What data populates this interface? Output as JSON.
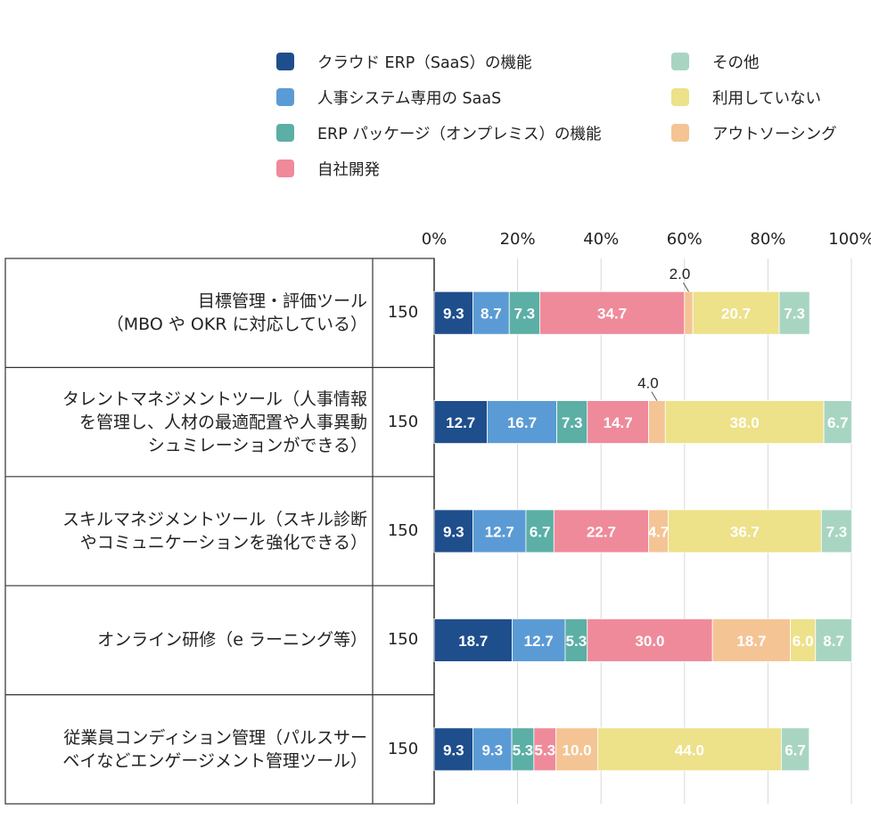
{
  "chart_data": {
    "type": "bar",
    "orientation": "horizontal",
    "stacked": true,
    "x_ticks": [
      "0%",
      "20%",
      "40%",
      "60%",
      "80%",
      "100%"
    ],
    "xlim": [
      0,
      100
    ],
    "categories": [
      "目標管理・評価ツール\n（MBO や OKR に対応している）",
      "タレントマネジメントツール（人事情報\nを管理し、人材の最適配置や人事異動\nシュミレーションができる）",
      "スキルマネジメントツール（スキル診断\nやコミュニケーションを強化できる）",
      "オンライン研修（e ラーニング等）",
      "従業員コンディション管理（パルスサー\nベイなどエンゲージメント管理ツール）"
    ],
    "n_values": [
      "150",
      "150",
      "150",
      "150",
      "150"
    ],
    "series": [
      {
        "name": "クラウド ERP（SaaS）の機能",
        "color": "#1f4e8c",
        "values": [
          9.3,
          12.7,
          9.3,
          18.7,
          9.3
        ],
        "labels": [
          "9.3",
          "12.7",
          "9.3",
          "18.7",
          "9.3"
        ]
      },
      {
        "name": "人事システム専用の SaaS",
        "color": "#5b9bd5",
        "values": [
          8.7,
          16.7,
          12.7,
          12.7,
          9.3
        ],
        "labels": [
          "8.7",
          "16.7",
          "12.7",
          "12.7",
          "9.3"
        ]
      },
      {
        "name": "ERP パッケージ（オンプレミス）の機能",
        "color": "#5bafa5",
        "values": [
          7.3,
          7.3,
          6.7,
          5.3,
          5.3
        ],
        "labels": [
          "7.3",
          "7.3",
          "6.7",
          "5.3",
          "5.3"
        ]
      },
      {
        "name": "自社開発",
        "color": "#ef8a9a",
        "values": [
          34.7,
          14.7,
          22.7,
          30.0,
          5.3
        ],
        "labels": [
          "34.7",
          "14.7",
          "22.7",
          "30.0",
          "5.3"
        ]
      },
      {
        "name": "アウトソーシング",
        "color": "#f4c494",
        "values": [
          2.0,
          4.0,
          4.7,
          18.7,
          10.0
        ],
        "labels": [
          "2.0",
          "4.0",
          "4.7",
          "18.7",
          "10.0"
        ]
      },
      {
        "name": "利用していない",
        "color": "#ede189",
        "values": [
          20.7,
          38.0,
          36.7,
          6.0,
          44.0
        ],
        "labels": [
          "20.7",
          "38.0",
          "36.7",
          "6.0",
          "44.0"
        ]
      },
      {
        "name": "その他",
        "color": "#a8d5c2",
        "values": [
          7.3,
          6.7,
          7.3,
          8.7,
          6.7
        ],
        "labels": [
          "7.3",
          "6.7",
          "7.3",
          "8.7",
          "6.7"
        ]
      }
    ],
    "callouts": [
      {
        "category_index": 0,
        "series_index": 4,
        "label": "2.0"
      },
      {
        "category_index": 1,
        "series_index": 4,
        "label": "4.0"
      }
    ],
    "legend_columns": [
      [
        "クラウド ERP（SaaS）の機能",
        "人事システム専用の SaaS",
        "ERP パッケージ（オンプレミス）の機能",
        "自社開発"
      ],
      [
        "その他",
        "利用していない",
        "アウトソーシング"
      ]
    ]
  }
}
